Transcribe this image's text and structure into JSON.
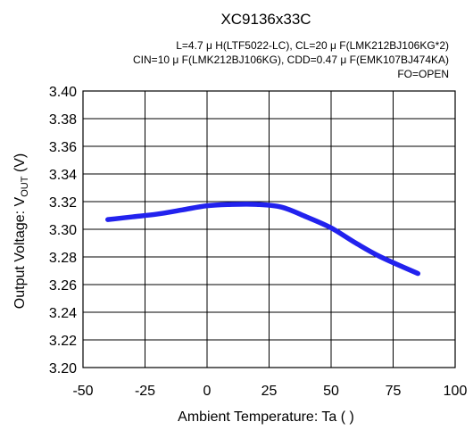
{
  "chart_data": {
    "type": "line",
    "title": "XC9136x33C",
    "conditions": [
      "L=4.7 μ H(LTF5022-LC), CL=20 μ F(LMK212BJ106KG*2)",
      "CIN=10 μ F(LMK212BJ106KG), CDD=0.47 μ F(EMK107BJ474KA)",
      "FO=OPEN"
    ],
    "xlabel": "Ambient Temperature: Ta (   )",
    "ylabel_main": "Output Voltage: V",
    "ylabel_sub": "OUT",
    "ylabel_unit": " (V)",
    "xlim": [
      -50,
      100
    ],
    "ylim": [
      3.2,
      3.4
    ],
    "x_ticks": [
      "-50",
      "-25",
      "0",
      "25",
      "50",
      "75",
      "100"
    ],
    "y_ticks": [
      "3.20",
      "3.22",
      "3.24",
      "3.26",
      "3.28",
      "3.30",
      "3.32",
      "3.34",
      "3.36",
      "3.38",
      "3.40"
    ],
    "grid": true,
    "series_color": "#2222ee",
    "series": [
      {
        "x": [
          -40,
          -30,
          -20,
          -10,
          0,
          10,
          20,
          30,
          40,
          50,
          60,
          70,
          85
        ],
        "values": [
          3.307,
          3.309,
          3.311,
          3.314,
          3.317,
          3.318,
          3.318,
          3.316,
          3.309,
          3.301,
          3.29,
          3.28,
          3.268
        ]
      }
    ]
  }
}
